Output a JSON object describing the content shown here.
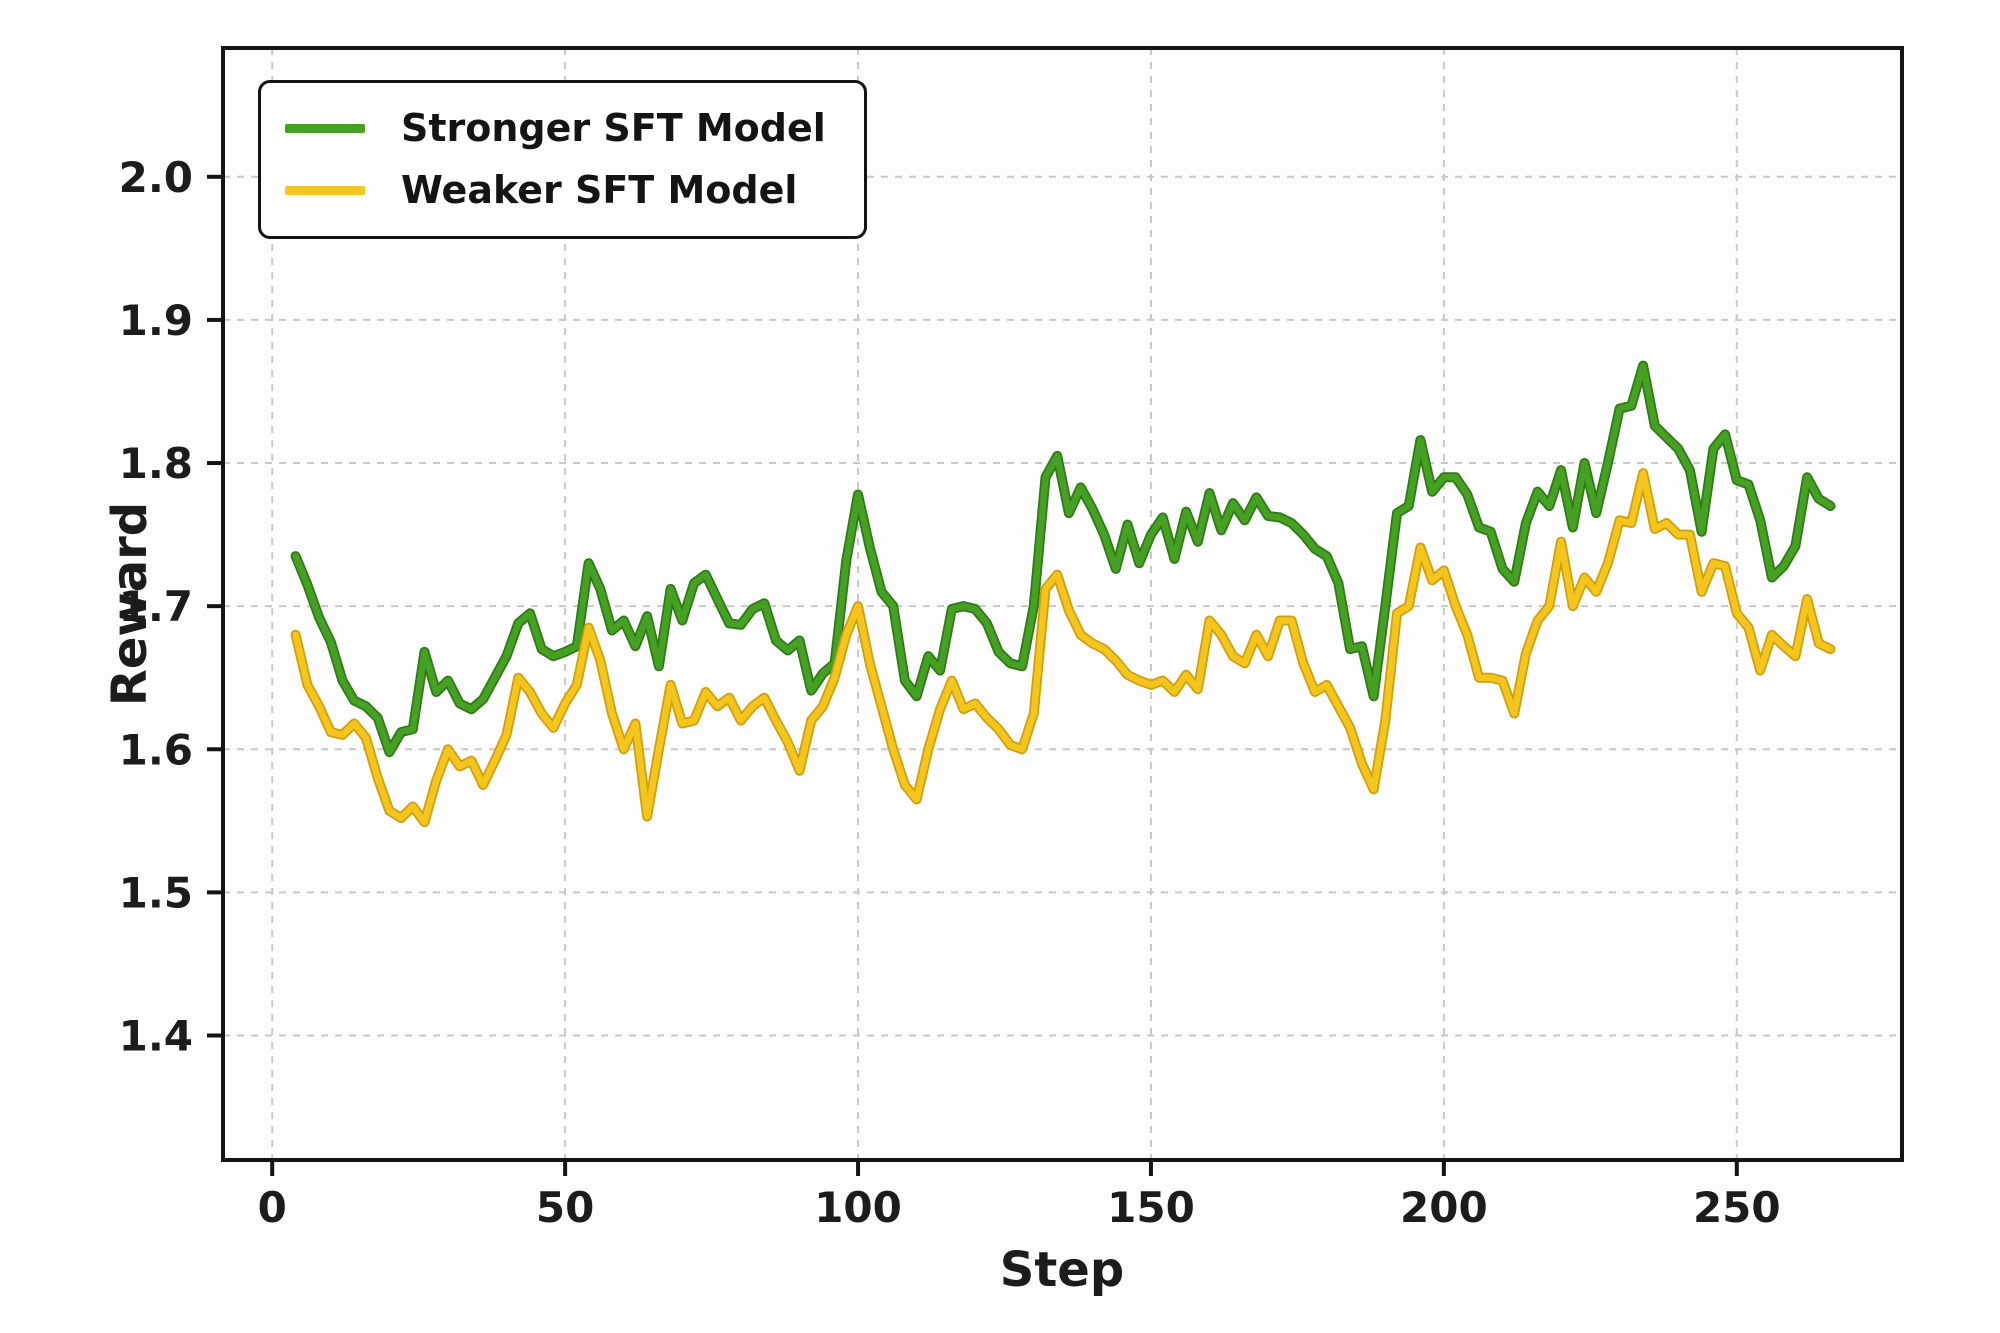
{
  "chart_data": {
    "type": "line",
    "title": "",
    "xlabel": "Step",
    "ylabel": "Reward",
    "xlim": [
      -8.4,
      278.2
    ],
    "ylim": [
      1.313,
      2.09
    ],
    "grid": true,
    "grid_style": "dashed",
    "grid_color": "#c8c8c8",
    "legend_position": "upper left",
    "x_ticks": [
      {
        "v": 0,
        "label": "0"
      },
      {
        "v": 50,
        "label": "50"
      },
      {
        "v": 100,
        "label": "100"
      },
      {
        "v": 150,
        "label": "150"
      },
      {
        "v": 200,
        "label": "200"
      },
      {
        "v": 250,
        "label": "250"
      }
    ],
    "y_ticks": [
      {
        "v": 1.4,
        "label": "1.4"
      },
      {
        "v": 1.5,
        "label": "1.5"
      },
      {
        "v": 1.6,
        "label": "1.6"
      },
      {
        "v": 1.7,
        "label": "1.7"
      },
      {
        "v": 1.8,
        "label": "1.8"
      },
      {
        "v": 1.9,
        "label": "1.9"
      },
      {
        "v": 2.0,
        "label": "2.0"
      }
    ],
    "x": [
      4,
      6,
      8,
      10,
      12,
      14,
      16,
      18,
      20,
      22,
      24,
      26,
      28,
      30,
      32,
      34,
      36,
      38,
      40,
      42,
      44,
      46,
      48,
      50,
      52,
      54,
      56,
      58,
      60,
      62,
      64,
      66,
      68,
      70,
      72,
      74,
      76,
      78,
      80,
      82,
      84,
      86,
      88,
      90,
      92,
      94,
      96,
      98,
      100,
      102,
      104,
      106,
      108,
      110,
      112,
      114,
      116,
      118,
      120,
      122,
      124,
      126,
      128,
      130,
      132,
      134,
      136,
      138,
      140,
      142,
      144,
      146,
      148,
      150,
      152,
      154,
      156,
      158,
      160,
      162,
      164,
      166,
      168,
      170,
      172,
      174,
      176,
      178,
      180,
      182,
      184,
      186,
      188,
      190,
      192,
      194,
      196,
      198,
      200,
      202,
      204,
      206,
      208,
      210,
      212,
      214,
      216,
      218,
      220,
      222,
      224,
      226,
      228,
      230,
      232,
      234,
      236,
      238,
      240,
      242,
      244,
      246,
      248,
      250,
      252,
      254,
      256,
      258,
      260,
      262,
      264,
      266
    ],
    "series": [
      {
        "name": "Stronger SFT Model",
        "color": "#45a024",
        "edge_color": "#2e7a15",
        "values": [
          1.735,
          1.715,
          1.692,
          1.675,
          1.648,
          1.634,
          1.63,
          1.622,
          1.598,
          1.612,
          1.614,
          1.668,
          1.64,
          1.648,
          1.632,
          1.628,
          1.635,
          1.65,
          1.665,
          1.688,
          1.695,
          1.67,
          1.665,
          1.668,
          1.672,
          1.73,
          1.712,
          1.683,
          1.69,
          1.672,
          1.693,
          1.658,
          1.712,
          1.69,
          1.716,
          1.722,
          1.705,
          1.688,
          1.687,
          1.698,
          1.702,
          1.676,
          1.669,
          1.676,
          1.641,
          1.653,
          1.66,
          1.732,
          1.778,
          1.741,
          1.71,
          1.7,
          1.648,
          1.637,
          1.665,
          1.655,
          1.698,
          1.7,
          1.698,
          1.688,
          1.668,
          1.66,
          1.658,
          1.7,
          1.79,
          1.805,
          1.765,
          1.783,
          1.768,
          1.75,
          1.726,
          1.757,
          1.73,
          1.75,
          1.762,
          1.733,
          1.766,
          1.745,
          1.779,
          1.753,
          1.772,
          1.76,
          1.776,
          1.763,
          1.762,
          1.758,
          1.75,
          1.74,
          1.735,
          1.716,
          1.67,
          1.672,
          1.637,
          1.7,
          1.765,
          1.77,
          1.816,
          1.78,
          1.79,
          1.79,
          1.778,
          1.755,
          1.752,
          1.726,
          1.717,
          1.758,
          1.78,
          1.77,
          1.795,
          1.755,
          1.8,
          1.765,
          1.8,
          1.838,
          1.84,
          1.868,
          1.826,
          1.818,
          1.81,
          1.795,
          1.752,
          1.81,
          1.82,
          1.788,
          1.785,
          1.76,
          1.72,
          1.728,
          1.742,
          1.79,
          1.775,
          1.77
        ]
      },
      {
        "name": "Weaker SFT Model",
        "color": "#f3c51d",
        "edge_color": "#cf9f0e",
        "values": [
          1.68,
          1.645,
          1.63,
          1.612,
          1.61,
          1.618,
          1.608,
          1.58,
          1.557,
          1.552,
          1.56,
          1.549,
          1.578,
          1.6,
          1.588,
          1.592,
          1.575,
          1.592,
          1.61,
          1.65,
          1.64,
          1.625,
          1.615,
          1.632,
          1.645,
          1.685,
          1.662,
          1.625,
          1.6,
          1.618,
          1.553,
          1.6,
          1.645,
          1.618,
          1.62,
          1.64,
          1.63,
          1.636,
          1.62,
          1.63,
          1.636,
          1.62,
          1.605,
          1.585,
          1.62,
          1.63,
          1.65,
          1.68,
          1.7,
          1.66,
          1.63,
          1.6,
          1.575,
          1.565,
          1.6,
          1.628,
          1.648,
          1.628,
          1.632,
          1.622,
          1.614,
          1.603,
          1.6,
          1.625,
          1.712,
          1.722,
          1.697,
          1.68,
          1.674,
          1.67,
          1.662,
          1.652,
          1.648,
          1.645,
          1.648,
          1.64,
          1.652,
          1.642,
          1.69,
          1.68,
          1.665,
          1.66,
          1.68,
          1.665,
          1.69,
          1.69,
          1.66,
          1.64,
          1.645,
          1.63,
          1.615,
          1.59,
          1.572,
          1.62,
          1.695,
          1.7,
          1.741,
          1.718,
          1.725,
          1.7,
          1.68,
          1.65,
          1.65,
          1.648,
          1.625,
          1.667,
          1.69,
          1.7,
          1.745,
          1.7,
          1.72,
          1.71,
          1.73,
          1.76,
          1.758,
          1.793,
          1.754,
          1.758,
          1.75,
          1.75,
          1.71,
          1.73,
          1.728,
          1.695,
          1.685,
          1.655,
          1.68,
          1.672,
          1.665,
          1.705,
          1.674,
          1.67
        ]
      }
    ]
  }
}
